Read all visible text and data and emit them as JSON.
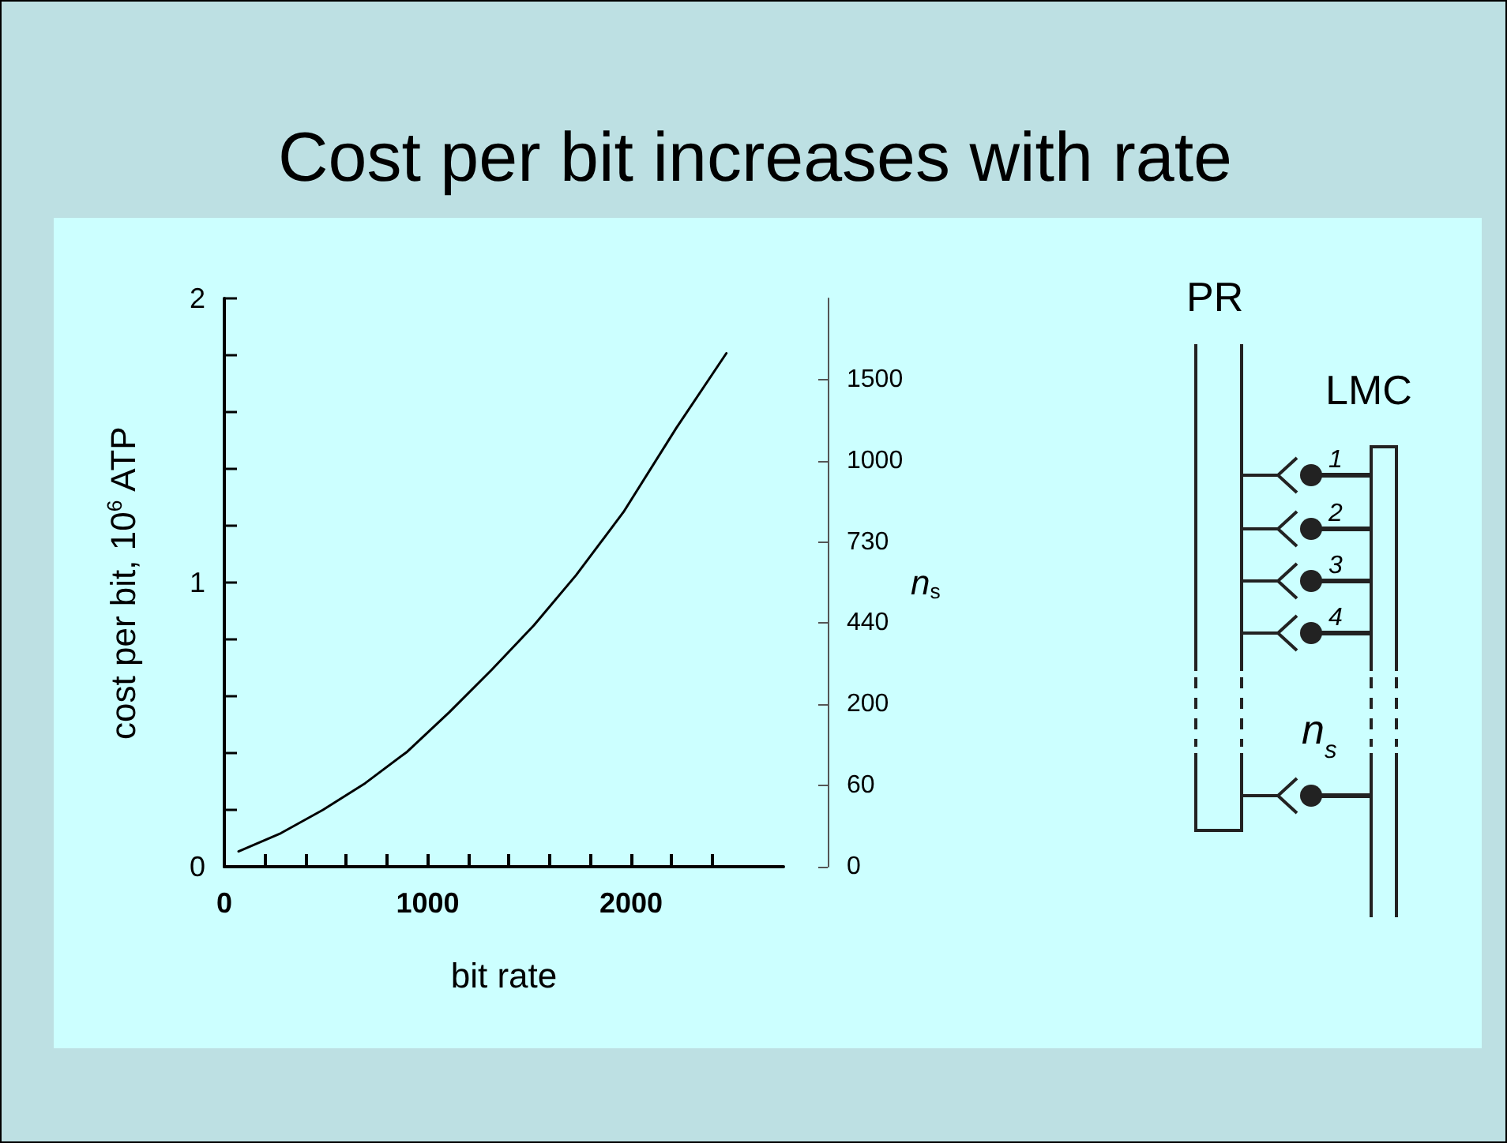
{
  "chart_data": {
    "type": "line",
    "title": "Cost per bit increases with rate",
    "xlabel": "bit rate",
    "ylabel": "cost per bit, 10$^{6}$ ATP",
    "y2label": "n$_{s}$",
    "x": [
      70,
      278,
      485,
      693,
      900,
      1107,
      1315,
      1523,
      1730,
      1963,
      2223,
      2469
    ],
    "series": [
      {
        "color": "#000000",
        "values": [
          0.054,
          0.118,
          0.2,
          0.294,
          0.405,
          0.544,
          0.693,
          0.85,
          1.026,
          1.248,
          1.544,
          1.807
        ]
      }
    ],
    "xlim": [
      0,
      2750
    ],
    "xticks": [
      0,
      {
        "value": 200,
        "label": null
      },
      {
        "value": 400,
        "label": null
      },
      {
        "value": 600,
        "label": null
      },
      {
        "value": 800,
        "label": null
      },
      1000,
      {
        "value": 1200,
        "label": null
      },
      {
        "value": 1400,
        "label": null
      },
      {
        "value": 1600,
        "label": null
      },
      {
        "value": 1800,
        "label": null
      },
      2000,
      {
        "value": 2200,
        "label": null
      },
      {
        "value": 2400,
        "label": null
      }
    ],
    "ylim": [
      0,
      2
    ],
    "yticks": [
      0,
      {
        "value": 0.2,
        "label": null
      },
      {
        "value": 0.4,
        "label": null
      },
      {
        "value": 0.6,
        "label": null
      },
      {
        "value": 0.8,
        "label": null
      },
      1,
      {
        "value": 1.2,
        "label": null
      },
      {
        "value": 1.4,
        "label": null
      },
      {
        "value": 1.6,
        "label": null
      },
      {
        "value": 1.8,
        "label": null
      },
      2
    ],
    "y2_categories": [
      "0",
      "60",
      "200",
      "440",
      "730",
      "1000",
      "1500",
      null
    ],
    "grid": false,
    "marker": "none",
    "line_style": "solid",
    "annotations": [
      "PR",
      "LMC",
      "1",
      "2",
      "3",
      "4",
      "n$_{s}$"
    ]
  }
}
